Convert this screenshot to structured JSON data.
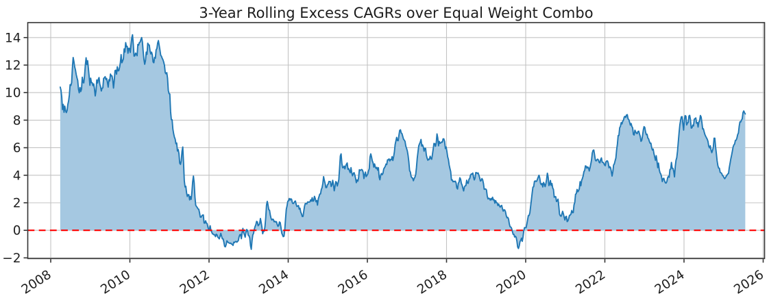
{
  "figure": {
    "title": "3-Year Rolling Excess CAGRs over Equal Weight Combo",
    "background": "#ffffff"
  },
  "chart_data": {
    "type": "area",
    "title": "3-Year Rolling Excess CAGRs over Equal Weight Combo",
    "xlabel": "",
    "ylabel": "",
    "x_unit": "year",
    "x_start": 2008.24,
    "x_step": 0.019231,
    "n_points": 901,
    "y": [
      10.4,
      10.17,
      9.69,
      8.77,
      9.14,
      8.57,
      9.02,
      8.7,
      8.55,
      8.69,
      9.14,
      9.39,
      9.82,
      10.58,
      10.52,
      10.72,
      11.8,
      12.55,
      12.26,
      11.87,
      11.65,
      11.32,
      11.08,
      10.88,
      10.25,
      9.99,
      10.37,
      10.08,
      10.26,
      11.12,
      10.73,
      10.71,
      11.24,
      12.0,
      12.53,
      12.03,
      12.32,
      11.76,
      11.18,
      10.53,
      11.05,
      10.72,
      10.72,
      10.51,
      10.63,
      10.27,
      9.76,
      10.12,
      10.92,
      10.7,
      10.96,
      11.09,
      10.62,
      10.43,
      10.12,
      10.32,
      10.35,
      11.03,
      11.08,
      11.16,
      10.96,
      11.03,
      10.75,
      10.4,
      10.94,
      10.85,
      11.35,
      11.22,
      11.22,
      10.92,
      10.33,
      10.87,
      11.6,
      11.63,
      11.34,
      11.88,
      11.58,
      11.6,
      11.84,
      12.17,
      12.76,
      12.17,
      12.3,
      12.45,
      13.18,
      12.95,
      13.63,
      13.34,
      13.36,
      12.86,
      13.22,
      13.21,
      12.92,
      13.45,
      13.98,
      14.2,
      13.51,
      12.65,
      12.67,
      12.87,
      12.8,
      12.68,
      13.5,
      13.45,
      13.64,
      13.67,
      13.86,
      14.0,
      13.67,
      12.98,
      12.4,
      12.06,
      12.32,
      12.94,
      12.78,
      13.59,
      13.47,
      13.46,
      13.03,
      12.81,
      12.94,
      12.75,
      12.23,
      12.17,
      12.56,
      12.5,
      13.11,
      13.2,
      13.6,
      13.78,
      13.44,
      13.1,
      12.72,
      12.64,
      12.49,
      12.38,
      12.21,
      11.97,
      11.45,
      11.37,
      11.45,
      11.05,
      10.15,
      9.93,
      9.9,
      8.62,
      8.03,
      8.03,
      7.35,
      7.02,
      6.77,
      6.63,
      6.29,
      6.34,
      5.76,
      5.87,
      5.57,
      4.88,
      4.79,
      5.04,
      5.73,
      6.05,
      4.94,
      3.61,
      3.15,
      3.2,
      2.72,
      2.46,
      2.59,
      2.59,
      2.21,
      2.45,
      2.25,
      2.77,
      3.52,
      3.94,
      3.45,
      2.42,
      1.83,
      1.73,
      1.66,
      1.56,
      1.53,
      1.28,
      0.96,
      0.95,
      1.05,
      1.11,
      1.12,
      0.53,
      0.52,
      0.69,
      0.53,
      0.49,
      0.25,
      0.04,
      0.06,
      0.33,
      -0.01,
      -0.12,
      -0.26,
      -0.27,
      -0.33,
      -0.33,
      -0.46,
      -0.28,
      -0.33,
      -0.49,
      -0.55,
      -0.62,
      -0.42,
      -0.22,
      -0.43,
      -0.62,
      -0.62,
      -0.86,
      -1.17,
      -1.2,
      -1.03,
      -0.76,
      -0.84,
      -0.9,
      -0.92,
      -0.95,
      -0.93,
      -1.0,
      -1.01,
      -1.1,
      -0.86,
      -0.89,
      -0.82,
      -0.81,
      -0.86,
      -0.81,
      -0.74,
      -0.47,
      -0.32,
      -0.3,
      -0.61,
      -0.17,
      0.14,
      -0.16,
      -0.33,
      -0.5,
      -0.16,
      0.06,
      -0.01,
      -0.35,
      -0.4,
      -0.55,
      -1.13,
      -1.38,
      -0.75,
      -0.34,
      -0.22,
      0.08,
      0.28,
      0.41,
      0.65,
      0.61,
      0.33,
      0.4,
      0.49,
      0.86,
      0.57,
      0.23,
      -0.25,
      -0.06,
      -0.07,
      0.27,
      0.93,
      1.82,
      2.1,
      1.84,
      1.5,
      1.46,
      1.11,
      0.87,
      0.75,
      0.81,
      0.79,
      0.62,
      0.66,
      0.6,
      0.63,
      0.44,
      0.29,
      0.34,
      0.61,
      0.56,
      0.22,
      -0.2,
      -0.33,
      -0.46,
      -0.43,
      0.04,
      0.82,
      1.53,
      1.77,
      2.11,
      2.15,
      2.31,
      2.2,
      2.29,
      2.25,
      1.99,
      1.94,
      1.99,
      2.09,
      2.13,
      1.88,
      1.73,
      1.76,
      1.8,
      1.54,
      1.61,
      1.32,
      1.19,
      1.0,
      1.01,
      1.4,
      1.76,
      1.95,
      1.94,
      1.92,
      2.06,
      2.05,
      2.05,
      2.06,
      2.21,
      2.12,
      2.37,
      2.11,
      2.15,
      2.47,
      2.32,
      2.08,
      2.16,
      1.83,
      2.27,
      2.45,
      2.63,
      2.65,
      2.96,
      3.1,
      3.4,
      3.9,
      3.63,
      3.4,
      3.1,
      3.11,
      3.3,
      3.36,
      3.55,
      3.54,
      3.54,
      3.18,
      3.3,
      3.63,
      3.31,
      2.87,
      3.19,
      3.54,
      3.48,
      3.22,
      3.43,
      3.68,
      4.5,
      5.4,
      5.55,
      4.88,
      4.55,
      4.55,
      4.66,
      4.46,
      4.67,
      4.8,
      4.89,
      4.43,
      4.48,
      4.32,
      4.19,
      4.55,
      4.18,
      3.96,
      4.12,
      4.19,
      4.02,
      3.78,
      3.46,
      3.66,
      3.57,
      3.82,
      4.4,
      4.35,
      4.38,
      4.42,
      4.37,
      4.22,
      3.76,
      4.05,
      4.23,
      3.9,
      3.99,
      4.08,
      4.31,
      4.48,
      5.33,
      5.55,
      5.32,
      5.04,
      4.9,
      4.59,
      4.82,
      4.59,
      4.49,
      4.57,
      4.37,
      4.55,
      3.86,
      3.67,
      4.0,
      4.13,
      4.04,
      4.14,
      4.45,
      4.55,
      4.64,
      4.81,
      4.78,
      5.12,
      5.11,
      5.19,
      5.04,
      5.14,
      5.13,
      5.35,
      5.07,
      5.34,
      5.69,
      6.23,
      6.49,
      6.75,
      6.52,
      6.51,
      6.91,
      7.26,
      7.3,
      7.07,
      7.02,
      6.82,
      6.62,
      6.55,
      6.46,
      6.12,
      5.95,
      5.77,
      5.44,
      4.98,
      4.34,
      4.23,
      3.91,
      3.82,
      3.79,
      3.6,
      3.76,
      3.86,
      4.04,
      4.55,
      5.22,
      5.68,
      6.13,
      6.28,
      6.4,
      6.6,
      6.12,
      6.21,
      6.05,
      5.75,
      5.96,
      5.95,
      5.46,
      5.24,
      5.09,
      5.17,
      5.15,
      5.38,
      5.23,
      5.16,
      5.5,
      5.9,
      6.31,
      6.29,
      6.1,
      6.37,
      7.0,
      6.71,
      6.14,
      6.46,
      6.32,
      6.35,
      6.42,
      6.4,
      6.64,
      6.64,
      6.46,
      5.94,
      6.05,
      5.73,
      5.34,
      5.14,
      4.74,
      4.49,
      4.26,
      3.65,
      3.67,
      3.53,
      3.56,
      3.53,
      3.57,
      3.46,
      3.09,
      3.0,
      3.42,
      3.51,
      3.82,
      3.72,
      3.41,
      3.28,
      3.06,
      2.86,
      3.15,
      3.23,
      3.25,
      3.64,
      3.43,
      3.41,
      3.71,
      3.76,
      4.01,
      4.09,
      4.07,
      4.16,
      3.87,
      3.66,
      3.81,
      4.2,
      4.18,
      4.13,
      4.17,
      4.01,
      3.82,
      3.58,
      3.62,
      3.76,
      3.66,
      3.41,
      2.98,
      3.0,
      3.0,
      2.93,
      2.49,
      2.28,
      2.33,
      2.3,
      2.19,
      2.31,
      2.22,
      2.4,
      2.21,
      2.22,
      1.97,
      2.16,
      2.02,
      1.99,
      1.8,
      1.91,
      1.78,
      1.68,
      1.77,
      1.81,
      1.56,
      1.39,
      1.49,
      1.48,
      1.34,
      1.06,
      0.91,
      0.94,
      0.82,
      0.47,
      0.26,
      0.24,
      0.14,
      -0.08,
      -0.29,
      -0.29,
      -0.49,
      -0.43,
      -0.51,
      -0.79,
      -1.22,
      -1.32,
      -1.14,
      -0.83,
      -0.72,
      -0.57,
      -0.8,
      -0.48,
      -0.03,
      0.2,
      0.19,
      0.19,
      0.44,
      0.75,
      1.07,
      1.08,
      1.27,
      1.74,
      2.21,
      2.7,
      3.13,
      3.17,
      3.55,
      3.59,
      3.55,
      3.57,
      3.72,
      3.87,
      4.0,
      3.79,
      3.41,
      3.32,
      3.4,
      3.15,
      3.48,
      3.35,
      3.17,
      3.38,
      3.71,
      4.15,
      3.87,
      3.25,
      3.34,
      3.62,
      3.26,
      3.4,
      3.08,
      2.96,
      2.4,
      2.45,
      2.44,
      2.09,
      2.15,
      2.26,
      1.75,
      1.17,
      1.06,
      1.02,
      1.17,
      1.38,
      1.21,
      0.97,
      0.75,
      0.98,
      1.02,
      0.63,
      0.69,
      0.86,
      1.08,
      1.11,
      1.18,
      1.44,
      1.28,
      1.29,
      1.85,
      2.02,
      2.62,
      2.66,
      2.97,
      2.8,
      2.88,
      3.03,
      3.53,
      3.24,
      3.62,
      3.76,
      3.95,
      4.26,
      4.35,
      4.68,
      4.65,
      4.51,
      4.6,
      4.55,
      4.31,
      4.54,
      4.81,
      5.1,
      5.62,
      5.8,
      5.83,
      5.49,
      5.12,
      5.04,
      5.12,
      5.17,
      5.11,
      4.94,
      4.9,
      5.14,
      5.26,
      4.95,
      4.94,
      4.88,
      4.76,
      4.69,
      4.97,
      5.04,
      5.04,
      4.88,
      4.54,
      4.62,
      4.55,
      4.27,
      3.94,
      4.25,
      4.74,
      4.83,
      5.05,
      5.25,
      5.85,
      6.26,
      6.88,
      6.89,
      7.45,
      7.55,
      7.82,
      7.73,
      7.93,
      8.0,
      8.23,
      8.28,
      8.2,
      8.38,
      8.4,
      8.09,
      8.04,
      7.86,
      7.64,
      7.76,
      7.54,
      7.45,
      6.97,
      6.92,
      7.27,
      7.15,
      7.05,
      7.02,
      7.18,
      7.2,
      7.0,
      6.82,
      6.46,
      6.54,
      6.86,
      7.28,
      7.53,
      7.47,
      7.14,
      6.95,
      6.97,
      6.7,
      6.64,
      6.45,
      6.32,
      6.33,
      6.01,
      5.83,
      5.9,
      5.57,
      5.33,
      5.09,
      5.42,
      5.02,
      4.55,
      4.88,
      4.4,
      4.18,
      4.09,
      3.89,
      3.54,
      3.75,
      3.78,
      3.59,
      3.45,
      3.43,
      3.55,
      3.82,
      3.92,
      3.85,
      4.41,
      4.45,
      4.93,
      4.5,
      4.5,
      4.28,
      3.88,
      4.63,
      5.09,
      5.28,
      5.77,
      6.43,
      7.07,
      7.65,
      7.99,
      8.24,
      8.25,
      7.75,
      7.28,
      8.0,
      8.33,
      8.29,
      7.65,
      7.79,
      7.84,
      8.3,
      8.35,
      8.03,
      7.42,
      7.45,
      7.64,
      7.58,
      8.07,
      8.11,
      8.16,
      7.78,
      7.83,
      7.5,
      7.87,
      7.94,
      8.34,
      8.23,
      7.84,
      7.36,
      7.37,
      7.14,
      6.95,
      6.83,
      6.72,
      6.62,
      6.46,
      6.11,
      5.99,
      6.14,
      5.83,
      5.64,
      5.81,
      6.02,
      6.69,
      6.69,
      6.05,
      5.58,
      5.04,
      4.7,
      4.52,
      4.51,
      4.21,
      4.18,
      4.13,
      3.99,
      3.94,
      3.83,
      3.75,
      3.83,
      3.93,
      4.01,
      4.09,
      4.14,
      4.56,
      4.87,
      5.19,
      5.45,
      5.74,
      6.05,
      6.2,
      6.27,
      6.53,
      6.55,
      6.7,
      6.95,
      7.07,
      7.56,
      7.88,
      7.87,
      8.0,
      8.1,
      8.55,
      8.67,
      8.54,
      8.45
    ],
    "x_ticks": [
      2008,
      2010,
      2012,
      2014,
      2016,
      2018,
      2020,
      2022,
      2024,
      2026
    ],
    "x_tick_labels": [
      "2008",
      "2010",
      "2012",
      "2014",
      "2016",
      "2018",
      "2020",
      "2022",
      "2024",
      "2026"
    ],
    "y_ticks": [
      -2,
      0,
      2,
      4,
      6,
      8,
      10,
      12,
      14
    ],
    "y_tick_labels": [
      "−2",
      "0",
      "2",
      "4",
      "6",
      "8",
      "10",
      "12",
      "14"
    ],
    "xlim": [
      2007.42,
      2026.04
    ],
    "ylim": [
      -2.05,
      15.08
    ],
    "grid": true,
    "legend": null,
    "zero_line": {
      "value": 0,
      "style": "dashed",
      "color": "#ff0000"
    },
    "colors": {
      "line": "#1f77b4",
      "fill": "#a5c8e1",
      "grid": "#c3c3c3",
      "axis": "#333333",
      "tick_label": "#1f1f1f",
      "title": "#1c1c1c",
      "zero_line": "#ff0000"
    }
  }
}
